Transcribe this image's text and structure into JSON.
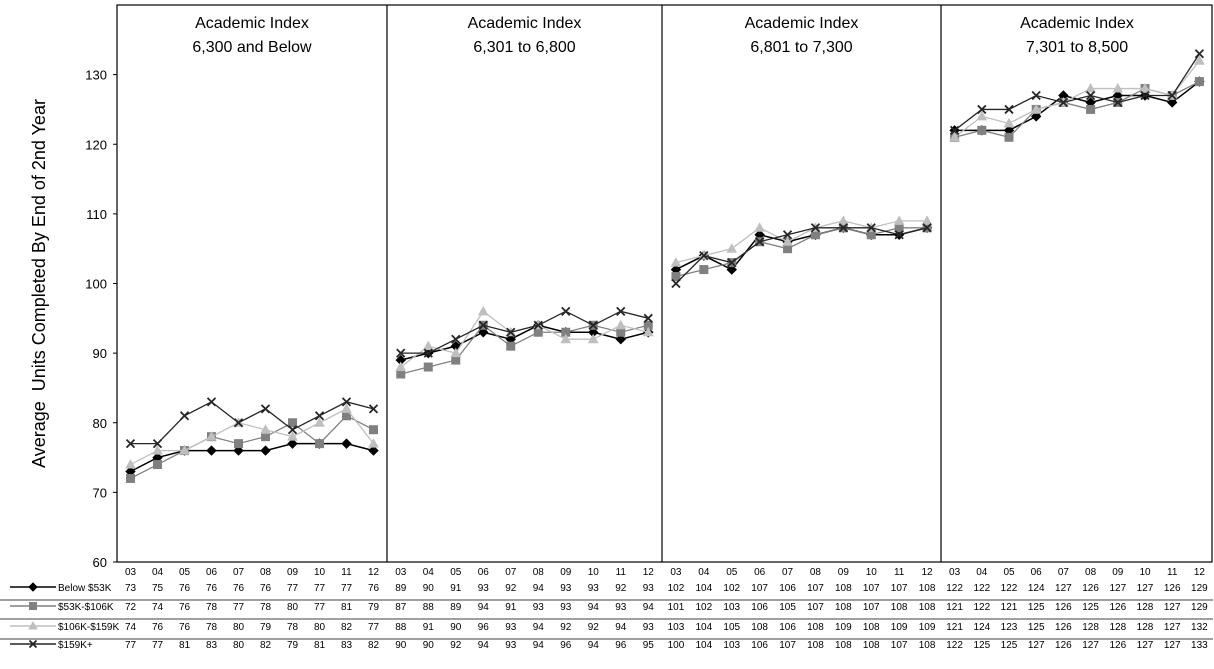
{
  "chart_data": {
    "type": "line",
    "ylabel": "Average  Units Completed By End of 2nd Year",
    "ylim": [
      60,
      140
    ],
    "yticks": [
      60,
      70,
      80,
      90,
      100,
      110,
      120,
      130
    ],
    "x": [
      "03",
      "04",
      "05",
      "06",
      "07",
      "08",
      "09",
      "10",
      "11",
      "12"
    ],
    "grid": false,
    "legend": "bottom-left data table",
    "series_colors": [
      "#000000",
      "#808080",
      "#bfbfbf",
      "#262626"
    ],
    "series_markers": [
      "diamond",
      "square",
      "triangle",
      "x"
    ],
    "series_labels": [
      "Below $53K",
      "$53K-$106K",
      "$106K-$159K",
      "$159K+"
    ],
    "panels": [
      {
        "title_line1": "Academic Index",
        "title_line2": "6,300 and Below",
        "series": [
          {
            "name": "Below $53K",
            "values": [
              73,
              75,
              76,
              76,
              76,
              76,
              77,
              77,
              77,
              76
            ]
          },
          {
            "name": "$53K-$106K",
            "values": [
              72,
              74,
              76,
              78,
              77,
              78,
              80,
              77,
              81,
              79
            ]
          },
          {
            "name": "$106K-$159K",
            "values": [
              74,
              76,
              76,
              78,
              80,
              79,
              78,
              80,
              82,
              77
            ]
          },
          {
            "name": "$159K+",
            "values": [
              77,
              77,
              81,
              83,
              80,
              82,
              79,
              81,
              83,
              82
            ]
          }
        ]
      },
      {
        "title_line1": "Academic Index",
        "title_line2": "6,301 to 6,800",
        "series": [
          {
            "name": "Below $53K",
            "values": [
              89,
              90,
              91,
              93,
              92,
              94,
              93,
              93,
              92,
              93
            ]
          },
          {
            "name": "$53K-$106K",
            "values": [
              87,
              88,
              89,
              94,
              91,
              93,
              93,
              94,
              93,
              94
            ]
          },
          {
            "name": "$106K-$159K",
            "values": [
              88,
              91,
              90,
              96,
              93,
              94,
              92,
              92,
              94,
              93
            ]
          },
          {
            "name": "$159K+",
            "values": [
              90,
              90,
              92,
              94,
              93,
              94,
              96,
              94,
              96,
              95
            ]
          }
        ]
      },
      {
        "title_line1": "Academic Index",
        "title_line2": "6,801 to 7,300",
        "series": [
          {
            "name": "Below $53K",
            "values": [
              102,
              104,
              102,
              107,
              106,
              107,
              108,
              107,
              107,
              108
            ]
          },
          {
            "name": "$53K-$106K",
            "values": [
              101,
              102,
              103,
              106,
              105,
              107,
              108,
              107,
              108,
              108
            ]
          },
          {
            "name": "$106K-$159K",
            "values": [
              103,
              104,
              105,
              108,
              106,
              108,
              109,
              108,
              109,
              109
            ]
          },
          {
            "name": "$159K+",
            "values": [
              100,
              104,
              103,
              106,
              107,
              108,
              108,
              108,
              107,
              108
            ]
          }
        ]
      },
      {
        "title_line1": "Academic Index",
        "title_line2": "7,301 to 8,500",
        "series": [
          {
            "name": "Below $53K",
            "values": [
              122,
              122,
              122,
              124,
              127,
              126,
              127,
              127,
              126,
              129
            ]
          },
          {
            "name": "$53K-$106K",
            "values": [
              121,
              122,
              121,
              125,
              126,
              125,
              126,
              128,
              127,
              129
            ]
          },
          {
            "name": "$106K-$159K",
            "values": [
              121,
              124,
              123,
              125,
              126,
              128,
              128,
              128,
              127,
              132
            ]
          },
          {
            "name": "$159K+",
            "values": [
              122,
              125,
              125,
              127,
              126,
              127,
              126,
              127,
              127,
              133
            ]
          }
        ]
      }
    ]
  }
}
